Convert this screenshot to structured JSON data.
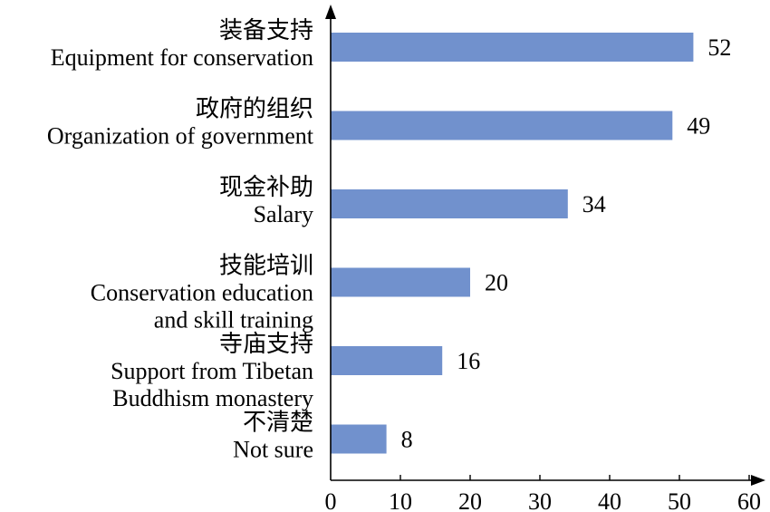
{
  "chart_data": {
    "type": "bar",
    "orientation": "horizontal",
    "categories": [
      [
        "装备支持",
        "Equipment for conservation"
      ],
      [
        "政府的组织",
        "Organization of government"
      ],
      [
        "现金补助",
        "Salary"
      ],
      [
        "技能培训",
        "Conservation education",
        "and skill training"
      ],
      [
        "寺庙支持",
        "Support from Tibetan",
        "Buddhism monastery"
      ],
      [
        "不清楚",
        "Not sure"
      ]
    ],
    "values": [
      52,
      49,
      34,
      20,
      16,
      8
    ],
    "data_labels": [
      "52",
      "49",
      "34",
      "20",
      "16",
      "8"
    ],
    "xlim": [
      0,
      60
    ],
    "xticks": [
      0,
      10,
      20,
      30,
      40,
      50,
      60
    ],
    "xtick_labels": [
      "0",
      "10",
      "20",
      "30",
      "40",
      "50",
      "60"
    ],
    "bar_color": "#7191cd",
    "axis_color": "#000000",
    "grid": false,
    "legend": "none"
  }
}
